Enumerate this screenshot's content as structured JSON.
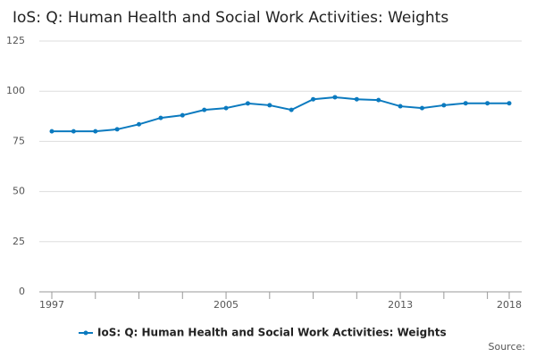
{
  "chart_data": {
    "type": "line",
    "title": "IoS: Q: Human Health and Social Work Activities: Weights",
    "x": [
      1997,
      1998,
      1999,
      2000,
      2001,
      2002,
      2003,
      2004,
      2005,
      2006,
      2007,
      2008,
      2009,
      2010,
      2011,
      2012,
      2013,
      2014,
      2015,
      2016,
      2017,
      2018
    ],
    "series": [
      {
        "name": "IoS: Q: Human Health and Social Work Activities: Weights",
        "color": "#0b7abf",
        "values": [
          80,
          80,
          80,
          81,
          83.5,
          86.7,
          88,
          90.7,
          91.6,
          93.9,
          93,
          90.7,
          96,
          97,
          96,
          95.6,
          92.5,
          91.6,
          93,
          94,
          94,
          94
        ]
      }
    ],
    "xlim": [
      1997,
      2018
    ],
    "xticks": [
      1997,
      2005,
      2013,
      2018
    ],
    "xminor_ticks": [
      1999,
      2001,
      2003,
      2007,
      2009,
      2011,
      2015,
      2017
    ],
    "ylim": [
      0,
      125
    ],
    "yticks": [
      0,
      25,
      50,
      75,
      100,
      125
    ],
    "grid": true,
    "legend": "bottom",
    "source": "Source:"
  }
}
